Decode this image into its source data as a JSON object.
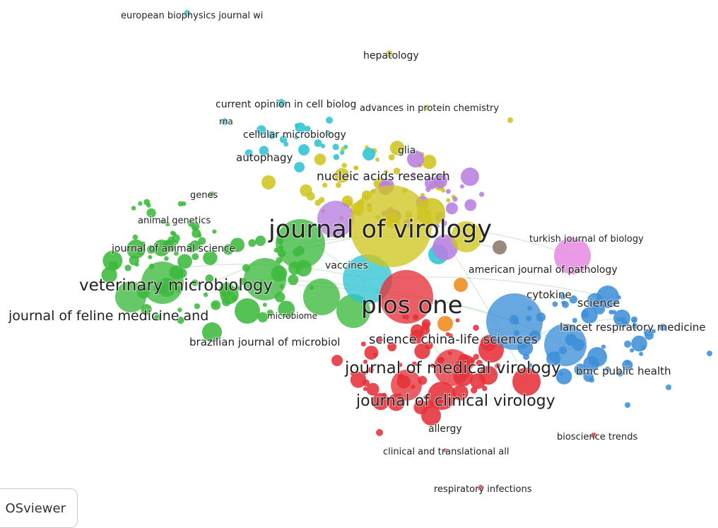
{
  "app": {
    "badge_label": "OSviewer"
  },
  "colors": {
    "green": "#3cb93c",
    "red": "#e6313a",
    "blue": "#3d8fd8",
    "yellow": "#cfc520",
    "cyan": "#2fc4d2",
    "purple": "#b77ee0",
    "pink": "#e67ee0",
    "orange": "#f08a1c",
    "gray": "#8d7a6a",
    "link": "#9ccf9c"
  },
  "labels": [
    "european biophysics journal wi",
    "hepatology",
    "current opinion in cell biolog",
    "advances in protein chemistry",
    "rna",
    "cellular microbiology",
    "autophagy",
    "glia",
    "nucleic acids research",
    "genes",
    "animal genetics",
    "journal of virology",
    "turkish journal of biology",
    "journal of animal science",
    "vaccines",
    "american journal of pathology",
    "veterinary microbiology",
    "cytokine",
    "science",
    "plos one",
    "journal of feline medicine and",
    "microbiome",
    "lancet respiratory medicine",
    "science china-life sciences",
    "brazilian journal of microbiol",
    "journal of medical virology",
    "bmc public health",
    "journal of clinical virology",
    "allergy",
    "bioscience trends",
    "clinical and translational all",
    "respiratory infections"
  ]
}
